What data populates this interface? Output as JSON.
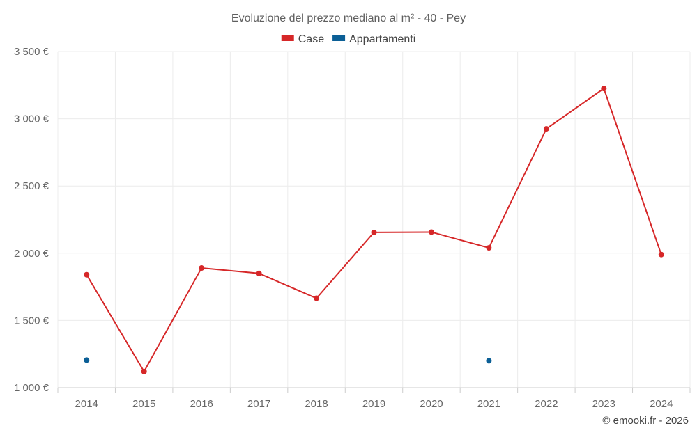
{
  "chart_data": {
    "type": "line",
    "title": "Evoluzione del prezzo mediano al m² - 40 - Pey",
    "xlabel": "",
    "ylabel": "",
    "categories": [
      "2014",
      "2015",
      "2016",
      "2017",
      "2018",
      "2019",
      "2020",
      "2021",
      "2022",
      "2023",
      "2024"
    ],
    "ylim": [
      1000,
      3500
    ],
    "yticks": [
      1000,
      1500,
      2000,
      2500,
      3000,
      3500
    ],
    "ytick_labels": [
      "1 000 €",
      "1 500 €",
      "2 000 €",
      "2 500 €",
      "3 000 €",
      "3 500 €"
    ],
    "grid": true,
    "legend_position": "top-center",
    "series": [
      {
        "name": "Case",
        "color": "#d62728",
        "style": "line-markers",
        "values": [
          1840,
          1120,
          1890,
          1850,
          1665,
          2155,
          2157,
          2040,
          2925,
          3225,
          1990
        ]
      },
      {
        "name": "Appartamenti",
        "color": "#0b5f96",
        "style": "markers",
        "values": [
          1205,
          null,
          null,
          null,
          null,
          null,
          null,
          1200,
          null,
          null,
          null
        ]
      }
    ]
  },
  "credit": "© emooki.fr - 2026"
}
